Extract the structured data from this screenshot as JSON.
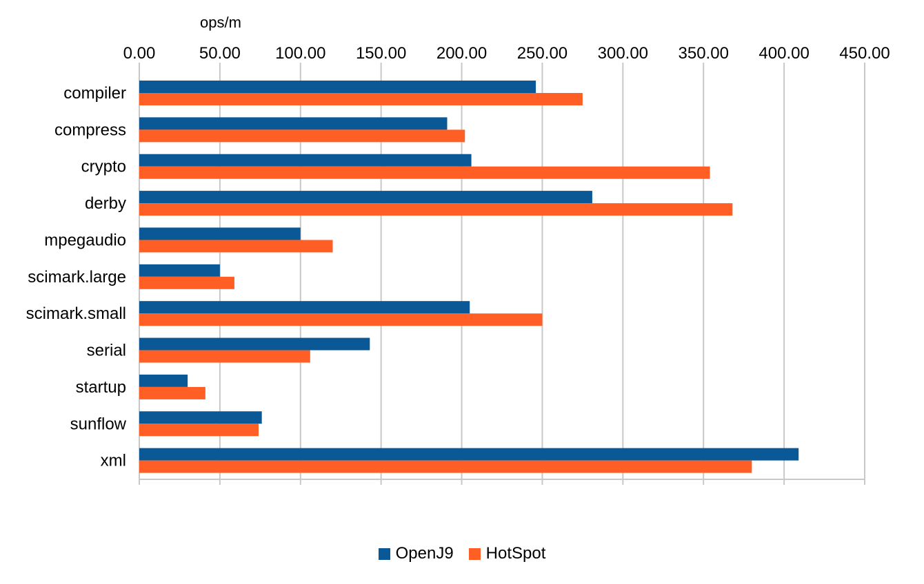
{
  "chart_data": {
    "type": "bar",
    "orientation": "horizontal",
    "title": "",
    "xlabel": "ops/m",
    "ylabel": "",
    "categories": [
      "compiler",
      "compress",
      "crypto",
      "derby",
      "mpegaudio",
      "scimark.large",
      "scimark.small",
      "serial",
      "startup",
      "sunflow",
      "xml"
    ],
    "series": [
      {
        "name": "OpenJ9",
        "color": "#0a5996",
        "values": [
          246,
          191,
          206,
          281,
          100,
          50,
          205,
          143,
          30,
          76,
          409
        ]
      },
      {
        "name": "HotSpot",
        "color": "#ff5f25",
        "values": [
          275,
          202,
          354,
          368,
          120,
          59,
          250,
          106,
          41,
          74,
          380
        ]
      }
    ],
    "xlim": [
      0,
      450
    ],
    "ticks": [
      "0.00",
      "50.00",
      "100.00",
      "150.00",
      "200.00",
      "250.00",
      "300.00",
      "350.00",
      "400.00",
      "450.00"
    ],
    "axis_position": "top",
    "grid": true,
    "legend_position": "bottom-center"
  }
}
